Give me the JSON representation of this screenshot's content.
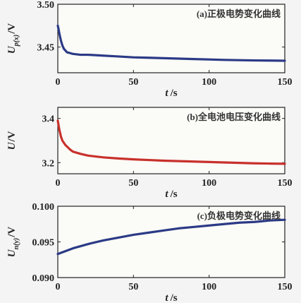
{
  "chart_data": [
    {
      "type": "line",
      "panel_label": "(a)正极电势变化曲线",
      "xlabel_var": "t",
      "xlabel_unit": "/s",
      "ylabel_var": "U",
      "ylabel_sub": "p(x)",
      "ylabel_unit": "/V",
      "xlim": [
        0,
        150
      ],
      "ylim": [
        3.42,
        3.5
      ],
      "xticks": [
        0,
        50,
        100,
        150
      ],
      "yticks": [
        3.45,
        3.5
      ],
      "ytick_labels": [
        "3.45",
        "3.50"
      ],
      "grid": false,
      "series": [
        {
          "color": "#2b3a86",
          "x": [
            0,
            0.5,
            1,
            2,
            3,
            4,
            5,
            6,
            8,
            10,
            15,
            20,
            30,
            40,
            50,
            60,
            70,
            80,
            90,
            100,
            110,
            120,
            130,
            140,
            150
          ],
          "y": [
            3.475,
            3.471,
            3.466,
            3.458,
            3.452,
            3.448,
            3.446,
            3.444,
            3.443,
            3.442,
            3.441,
            3.441,
            3.44,
            3.439,
            3.438,
            3.4375,
            3.437,
            3.4365,
            3.436,
            3.4355,
            3.435,
            3.4347,
            3.4344,
            3.4342,
            3.434
          ]
        }
      ]
    },
    {
      "type": "line",
      "panel_label": "(b)全电池电压变化曲线",
      "xlabel_var": "t",
      "xlabel_unit": "/s",
      "ylabel_var": "U",
      "ylabel_sub": "",
      "ylabel_unit": "/V",
      "xlim": [
        0,
        150
      ],
      "ylim": [
        3.15,
        3.45
      ],
      "xticks": [
        0,
        50,
        100,
        150
      ],
      "yticks": [
        3.2,
        3.4
      ],
      "ytick_labels": [
        "3.2",
        "3.4"
      ],
      "grid": false,
      "series": [
        {
          "color": "#c8312c",
          "x": [
            0,
            0.5,
            1,
            2,
            3,
            5,
            8,
            10,
            15,
            20,
            30,
            40,
            50,
            60,
            70,
            80,
            90,
            100,
            110,
            120,
            130,
            140,
            150
          ],
          "y": [
            3.39,
            3.37,
            3.35,
            3.32,
            3.3,
            3.28,
            3.26,
            3.25,
            3.24,
            3.232,
            3.224,
            3.219,
            3.215,
            3.212,
            3.209,
            3.207,
            3.205,
            3.203,
            3.201,
            3.199,
            3.197,
            3.196,
            3.195
          ]
        }
      ]
    },
    {
      "type": "line",
      "panel_label": "(c)负极电势变化曲线",
      "xlabel_var": "t",
      "xlabel_unit": "/s",
      "ylabel_var": "U",
      "ylabel_sub": "n(y)",
      "ylabel_unit": "/V",
      "xlim": [
        0,
        150
      ],
      "ylim": [
        0.09,
        0.1
      ],
      "xticks": [
        0,
        50,
        100,
        150
      ],
      "yticks": [
        0.09,
        0.095,
        0.1
      ],
      "ytick_labels": [
        "0.090",
        "0.095",
        "0.100"
      ],
      "grid": false,
      "series": [
        {
          "color": "#2b3a86",
          "x": [
            0,
            5,
            10,
            15,
            20,
            30,
            40,
            50,
            60,
            70,
            80,
            90,
            100,
            110,
            120,
            130,
            140,
            150
          ],
          "y": [
            0.0933,
            0.0937,
            0.0941,
            0.0944,
            0.0947,
            0.0952,
            0.0956,
            0.096,
            0.0963,
            0.0966,
            0.0969,
            0.0971,
            0.0973,
            0.0975,
            0.0977,
            0.0978,
            0.098,
            0.0981
          ]
        }
      ]
    }
  ]
}
